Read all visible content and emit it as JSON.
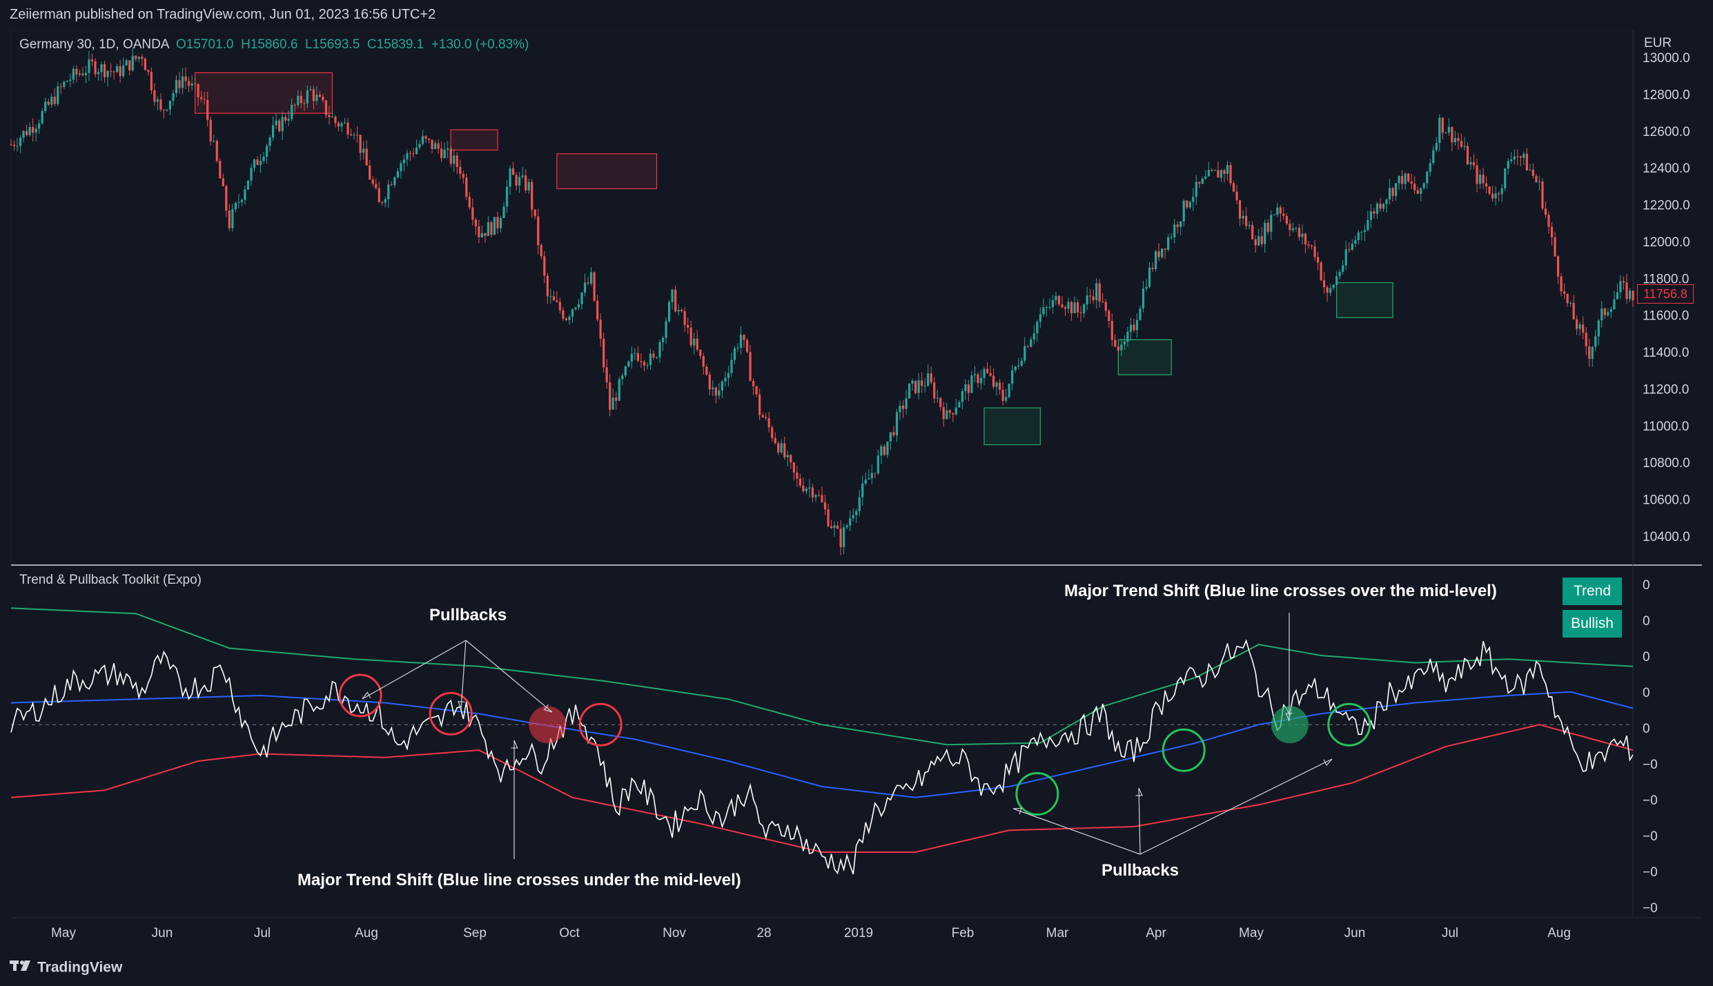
{
  "header": {
    "attribution": "Zeiierman published on TradingView.com, Jun 01, 2023 16:56 UTC+2"
  },
  "legend": {
    "symbol": "Germany 30, 1D, OANDA",
    "open": "O15701.0",
    "high": "H15860.6",
    "low": "L15693.5",
    "close": "C15839.1",
    "change": "+130.0 (+0.83%)"
  },
  "price_axis": {
    "currency": "EUR",
    "current_price": "11756.8"
  },
  "indicator": {
    "title": "Trend & Pullback Toolkit (Expo)",
    "badge_trend": "Trend",
    "badge_state": "Bullish"
  },
  "annotations": {
    "pullbacks_top": "Pullbacks",
    "pullbacks_bottom": "Pullbacks",
    "shift_down": "Major Trend Shift (Blue line crosses under the mid-level)",
    "shift_up": "Major Trend Shift (Blue line crosses over the mid-level)"
  },
  "footer": {
    "brand": "TradingView"
  },
  "colors": {
    "background": "#131722",
    "up": "#26a69a",
    "down": "#ef5350",
    "blue_line": "#2962ff",
    "upper_band": "#22ab6c",
    "lower_band": "#f23645",
    "oscillator": "#ffffff",
    "badge": "#089981"
  },
  "chart_data": [
    {
      "type": "candlestick",
      "title": "Germany 30, 1D, OANDA",
      "ylabel": "EUR",
      "ylim": [
        10250,
        13150
      ],
      "y_ticks": [
        "13000.0",
        "12800.0",
        "12600.0",
        "12400.0",
        "12200.0",
        "12000.0",
        "11800.0",
        "11600.0",
        "11400.0",
        "11200.0",
        "11000.0",
        "10800.0",
        "10600.0",
        "10400.0"
      ],
      "x_ticks": [
        "May",
        "Jun",
        "Jul",
        "Aug",
        "Sep",
        "Oct",
        "Nov",
        "28",
        "2019",
        "Feb",
        "Mar",
        "Apr",
        "May",
        "Jun",
        "Jul",
        "Aug"
      ],
      "close_path": [
        [
          0,
          12530
        ],
        [
          8,
          12650
        ],
        [
          18,
          12880
        ],
        [
          26,
          12960
        ],
        [
          34,
          12920
        ],
        [
          42,
          13020
        ],
        [
          48,
          12700
        ],
        [
          55,
          12900
        ],
        [
          62,
          12750
        ],
        [
          70,
          12100
        ],
        [
          76,
          12350
        ],
        [
          84,
          12600
        ],
        [
          90,
          12720
        ],
        [
          96,
          12820
        ],
        [
          104,
          12650
        ],
        [
          110,
          12620
        ],
        [
          118,
          12200
        ],
        [
          124,
          12420
        ],
        [
          132,
          12550
        ],
        [
          138,
          12500
        ],
        [
          144,
          12400
        ],
        [
          150,
          12050
        ],
        [
          156,
          12100
        ],
        [
          160,
          12360
        ],
        [
          166,
          12300
        ],
        [
          172,
          11700
        ],
        [
          178,
          11600
        ],
        [
          186,
          11800
        ],
        [
          192,
          11100
        ],
        [
          200,
          11400
        ],
        [
          206,
          11350
        ],
        [
          212,
          11700
        ],
        [
          220,
          11400
        ],
        [
          226,
          11150
        ],
        [
          234,
          11500
        ],
        [
          240,
          11080
        ],
        [
          246,
          10900
        ],
        [
          252,
          10700
        ],
        [
          258,
          10650
        ],
        [
          262,
          10500
        ],
        [
          266,
          10380
        ],
        [
          270,
          10550
        ],
        [
          276,
          10750
        ],
        [
          282,
          10950
        ],
        [
          288,
          11200
        ],
        [
          294,
          11250
        ],
        [
          300,
          11050
        ],
        [
          306,
          11200
        ],
        [
          312,
          11300
        ],
        [
          318,
          11150
        ],
        [
          324,
          11400
        ],
        [
          330,
          11600
        ],
        [
          336,
          11700
        ],
        [
          342,
          11620
        ],
        [
          348,
          11750
        ],
        [
          352,
          11550
        ],
        [
          356,
          11400
        ],
        [
          360,
          11550
        ],
        [
          364,
          11800
        ],
        [
          368,
          11950
        ],
        [
          372,
          12050
        ],
        [
          378,
          12250
        ],
        [
          384,
          12350
        ],
        [
          390,
          12400
        ],
        [
          394,
          12150
        ],
        [
          400,
          12000
        ],
        [
          406,
          12200
        ],
        [
          412,
          12050
        ],
        [
          418,
          11950
        ],
        [
          422,
          11700
        ],
        [
          426,
          11850
        ],
        [
          432,
          12050
        ],
        [
          438,
          12200
        ],
        [
          446,
          12350
        ],
        [
          452,
          12250
        ],
        [
          458,
          12650
        ],
        [
          464,
          12550
        ],
        [
          470,
          12350
        ],
        [
          476,
          12250
        ],
        [
          482,
          12500
        ],
        [
          486,
          12420
        ],
        [
          490,
          12300
        ],
        [
          494,
          12000
        ],
        [
          498,
          11700
        ],
        [
          502,
          11550
        ],
        [
          506,
          11400
        ],
        [
          510,
          11600
        ],
        [
          516,
          11750
        ],
        [
          520,
          11700
        ]
      ],
      "boxes": [
        {
          "t0": 59,
          "t1": 103,
          "y0": 12700,
          "y1": 12920,
          "kind": "resistance"
        },
        {
          "t0": 141,
          "t1": 156,
          "y0": 12500,
          "y1": 12610,
          "kind": "resistance"
        },
        {
          "t0": 175,
          "t1": 207,
          "y0": 12290,
          "y1": 12480,
          "kind": "resistance"
        },
        {
          "t0": 312,
          "t1": 330,
          "y0": 10900,
          "y1": 11100,
          "kind": "support"
        },
        {
          "t0": 355,
          "t1": 372,
          "y0": 11280,
          "y1": 11470,
          "kind": "support"
        },
        {
          "t0": 425,
          "t1": 443,
          "y0": 11590,
          "y1": 11780,
          "kind": "support"
        }
      ]
    },
    {
      "type": "line",
      "title": "Trend & Pullback Toolkit (Expo)",
      "ylim": [
        -5.3,
        4.4
      ],
      "y_ticks": [
        "0",
        "0",
        "0",
        "0",
        "0",
        "−0",
        "−0",
        "−0",
        "−0",
        "−0"
      ],
      "series": [
        {
          "key": "upper",
          "color": "#22ab6c",
          "path": [
            [
              0,
              3.2
            ],
            [
              40,
              3.05
            ],
            [
              70,
              2.1
            ],
            [
              110,
              1.8
            ],
            [
              150,
              1.6
            ],
            [
              190,
              1.2
            ],
            [
              230,
              0.7
            ],
            [
              260,
              0
            ],
            [
              300,
              -0.55
            ],
            [
              330,
              -0.5
            ],
            [
              350,
              0.5
            ],
            [
              380,
              1.3
            ],
            [
              400,
              2.2
            ],
            [
              420,
              1.9
            ],
            [
              450,
              1.7
            ],
            [
              480,
              1.8
            ],
            [
              520,
              1.6
            ]
          ]
        },
        {
          "key": "blue",
          "color": "#2962ff",
          "path": [
            [
              0,
              0.6
            ],
            [
              40,
              0.7
            ],
            [
              80,
              0.8
            ],
            [
              120,
              0.6
            ],
            [
              150,
              0.3
            ],
            [
              170,
              0
            ],
            [
              200,
              -0.4
            ],
            [
              230,
              -1.0
            ],
            [
              260,
              -1.7
            ],
            [
              290,
              -2.0
            ],
            [
              320,
              -1.7
            ],
            [
              350,
              -1.1
            ],
            [
              380,
              -0.5
            ],
            [
              400,
              0
            ],
            [
              420,
              0.3
            ],
            [
              450,
              0.6
            ],
            [
              480,
              0.8
            ],
            [
              500,
              0.9
            ],
            [
              520,
              0.45
            ]
          ]
        },
        {
          "key": "lower",
          "color": "#f23645",
          "path": [
            [
              0,
              -2.0
            ],
            [
              30,
              -1.8
            ],
            [
              60,
              -1.0
            ],
            [
              80,
              -0.8
            ],
            [
              120,
              -0.9
            ],
            [
              150,
              -0.7
            ],
            [
              180,
              -2.0
            ],
            [
              220,
              -2.7
            ],
            [
              260,
              -3.5
            ],
            [
              290,
              -3.5
            ],
            [
              320,
              -2.9
            ],
            [
              360,
              -2.8
            ],
            [
              400,
              -2.2
            ],
            [
              430,
              -1.6
            ],
            [
              460,
              -0.6
            ],
            [
              490,
              0
            ],
            [
              520,
              -0.7
            ]
          ]
        },
        {
          "key": "oscillator",
          "color": "#ffffff",
          "path": [
            [
              0,
              0
            ],
            [
              10,
              0.5
            ],
            [
              20,
              1.2
            ],
            [
              34,
              1.4
            ],
            [
              42,
              0.9
            ],
            [
              48,
              1.8
            ],
            [
              55,
              1.0
            ],
            [
              62,
              1.1
            ],
            [
              68,
              1.6
            ],
            [
              74,
              0.2
            ],
            [
              80,
              -0.8
            ],
            [
              88,
              0
            ],
            [
              96,
              0.5
            ],
            [
              104,
              1.0
            ],
            [
              110,
              0.6
            ],
            [
              118,
              0.3
            ],
            [
              124,
              -0.6
            ],
            [
              130,
              -0.2
            ],
            [
              138,
              0.1
            ],
            [
              142,
              0.6
            ],
            [
              148,
              0.2
            ],
            [
              152,
              -0.4
            ],
            [
              158,
              -1.4
            ],
            [
              164,
              -0.7
            ],
            [
              170,
              -1.0
            ],
            [
              176,
              -0.1
            ],
            [
              182,
              0.3
            ],
            [
              188,
              -0.6
            ],
            [
              194,
              -2.3
            ],
            [
              200,
              -1.5
            ],
            [
              206,
              -2.2
            ],
            [
              212,
              -2.8
            ],
            [
              220,
              -2.0
            ],
            [
              228,
              -2.6
            ],
            [
              236,
              -1.8
            ],
            [
              242,
              -3.0
            ],
            [
              250,
              -2.8
            ],
            [
              256,
              -3.4
            ],
            [
              262,
              -3.7
            ],
            [
              270,
              -3.9
            ],
            [
              276,
              -2.4
            ],
            [
              284,
              -2.0
            ],
            [
              292,
              -1.5
            ],
            [
              298,
              -0.9
            ],
            [
              306,
              -1.0
            ],
            [
              312,
              -1.8
            ],
            [
              318,
              -1.5
            ],
            [
              326,
              -0.7
            ],
            [
              334,
              -0.3
            ],
            [
              342,
              -0.2
            ],
            [
              350,
              0.3
            ],
            [
              356,
              -0.9
            ],
            [
              362,
              -0.6
            ],
            [
              368,
              0.5
            ],
            [
              374,
              1.2
            ],
            [
              382,
              1.3
            ],
            [
              390,
              1.9
            ],
            [
              396,
              2.1
            ],
            [
              400,
              1.1
            ],
            [
              406,
              0.2
            ],
            [
              412,
              0.7
            ],
            [
              418,
              1.0
            ],
            [
              424,
              0.6
            ],
            [
              430,
              -0.1
            ],
            [
              436,
              0
            ],
            [
              442,
              0.9
            ],
            [
              448,
              1.0
            ],
            [
              454,
              1.6
            ],
            [
              460,
              1.1
            ],
            [
              466,
              1.5
            ],
            [
              472,
              2.0
            ],
            [
              478,
              1.3
            ],
            [
              484,
              1.0
            ],
            [
              490,
              1.7
            ],
            [
              496,
              0.2
            ],
            [
              502,
              -0.9
            ],
            [
              508,
              -1.1
            ],
            [
              514,
              -0.5
            ],
            [
              520,
              -0.7
            ]
          ]
        }
      ],
      "markers": [
        {
          "t": 112,
          "y": 0.8,
          "kind": "bearish-pullback"
        },
        {
          "t": 141,
          "y": 0.3,
          "kind": "bearish-pullback"
        },
        {
          "t": 172,
          "y": 0,
          "kind": "bearish-shift"
        },
        {
          "t": 189,
          "y": 0,
          "kind": "bearish-pullback"
        },
        {
          "t": 329,
          "y": -1.9,
          "kind": "bullish-pullback"
        },
        {
          "t": 376,
          "y": -0.7,
          "kind": "bullish-pullback"
        },
        {
          "t": 410,
          "y": 0,
          "kind": "bullish-shift"
        },
        {
          "t": 429,
          "y": 0,
          "kind": "bullish-pullback"
        }
      ]
    }
  ]
}
